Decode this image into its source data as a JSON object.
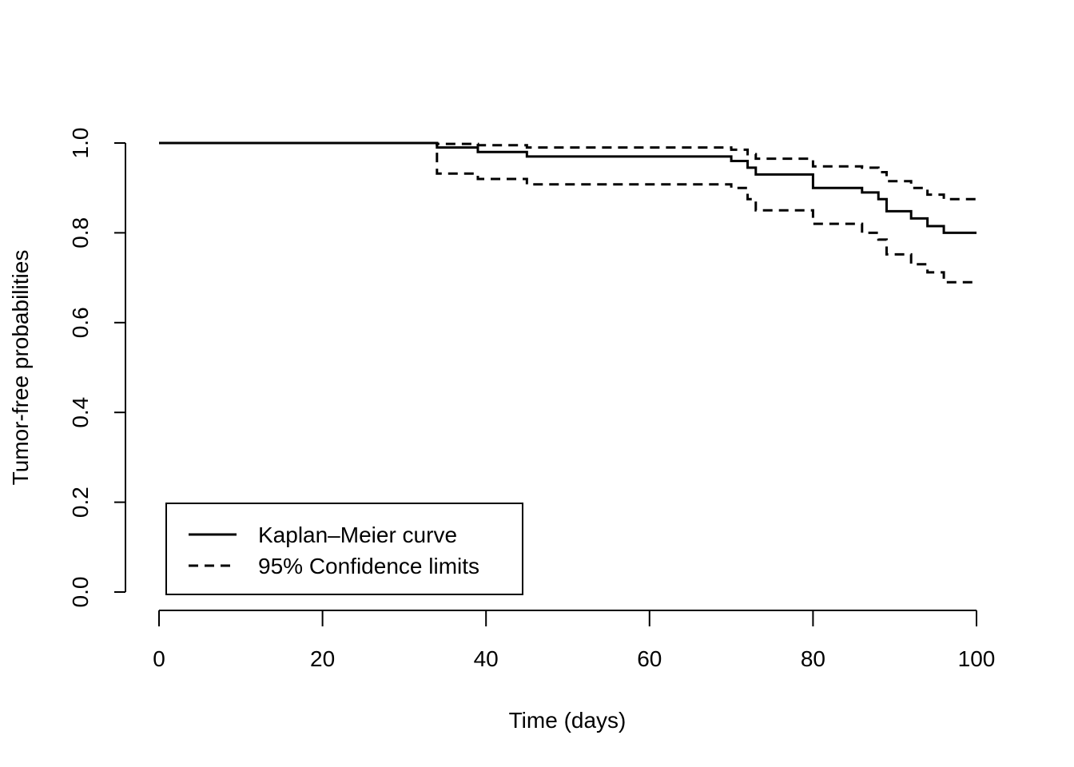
{
  "chart_data": {
    "type": "line",
    "title": "",
    "xlabel": "Time (days)",
    "ylabel": "Tumor-free probabilities",
    "xlim": [
      0,
      100
    ],
    "ylim": [
      0,
      1
    ],
    "x_ticks": [
      0,
      20,
      40,
      60,
      80,
      100
    ],
    "x_tick_labels": [
      "0",
      "20",
      "40",
      "60",
      "80",
      "100"
    ],
    "y_ticks": [
      0,
      0.2,
      0.4,
      0.6,
      0.8,
      1.0
    ],
    "y_tick_labels": [
      "0.0",
      "0.2",
      "0.4",
      "0.6",
      "0.8",
      "1.0"
    ],
    "grid": false,
    "step": true,
    "legend": {
      "position": "bottom-left",
      "entries": [
        {
          "label": "Kaplan–Meier curve",
          "style": "solid"
        },
        {
          "label": "95% Confidence limits",
          "style": "dashed"
        }
      ]
    },
    "series": [
      {
        "name": "Kaplan–Meier curve",
        "style": "solid",
        "color": "#000000",
        "points": [
          [
            0,
            1.0
          ],
          [
            34,
            0.99
          ],
          [
            39,
            0.98
          ],
          [
            45,
            0.97
          ],
          [
            67,
            0.97
          ],
          [
            70,
            0.96
          ],
          [
            72,
            0.945
          ],
          [
            73,
            0.93
          ],
          [
            80,
            0.9
          ],
          [
            86,
            0.89
          ],
          [
            88,
            0.875
          ],
          [
            89,
            0.848
          ],
          [
            92,
            0.832
          ],
          [
            94,
            0.815
          ],
          [
            96,
            0.8
          ],
          [
            100,
            0.8
          ]
        ]
      },
      {
        "name": "95% Confidence limits",
        "style": "dashed",
        "color": "#000000",
        "points": [
          [
            0,
            1.0
          ],
          [
            34,
            0.998
          ],
          [
            39,
            0.995
          ],
          [
            45,
            0.99
          ],
          [
            67,
            0.99
          ],
          [
            70,
            0.985
          ],
          [
            72,
            0.975
          ],
          [
            73,
            0.965
          ],
          [
            80,
            0.948
          ],
          [
            86,
            0.945
          ],
          [
            88,
            0.935
          ],
          [
            89,
            0.915
          ],
          [
            92,
            0.9
          ],
          [
            94,
            0.885
          ],
          [
            96,
            0.875
          ],
          [
            100,
            0.872
          ]
        ]
      },
      {
        "name": "95% Confidence limits",
        "style": "dashed",
        "color": "#000000",
        "points": [
          [
            0,
            1.0
          ],
          [
            34,
            0.932
          ],
          [
            39,
            0.92
          ],
          [
            45,
            0.908
          ],
          [
            67,
            0.908
          ],
          [
            70,
            0.9
          ],
          [
            72,
            0.875
          ],
          [
            73,
            0.85
          ],
          [
            80,
            0.82
          ],
          [
            86,
            0.8
          ],
          [
            88,
            0.785
          ],
          [
            89,
            0.752
          ],
          [
            92,
            0.73
          ],
          [
            94,
            0.712
          ],
          [
            96,
            0.69
          ],
          [
            100,
            0.688
          ]
        ]
      }
    ]
  }
}
